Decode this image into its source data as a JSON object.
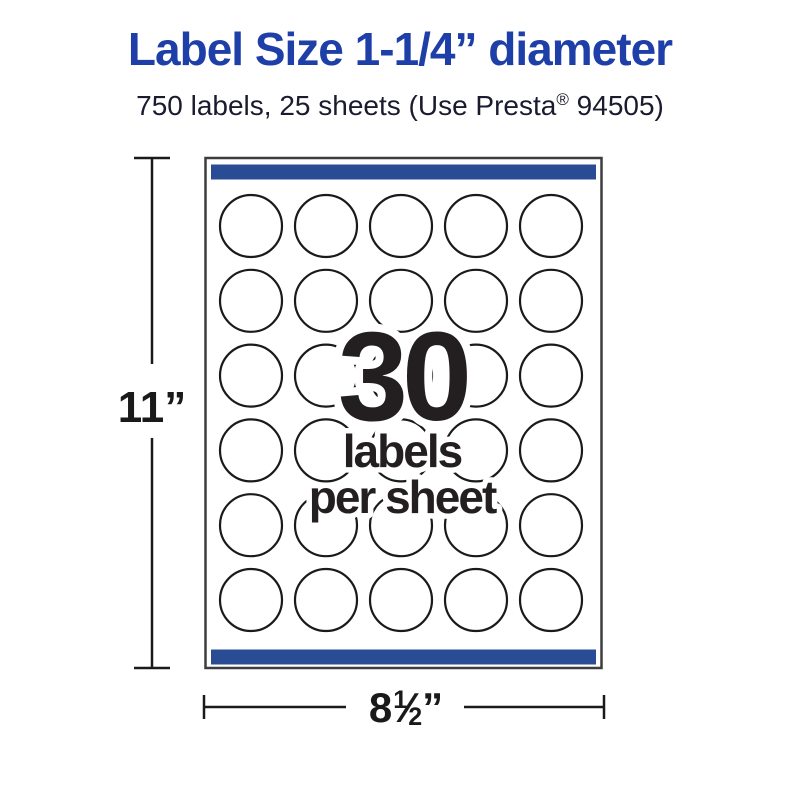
{
  "header": {
    "title": "Label Size 1-1/4” diameter",
    "subtitle_pre": "750 labels, 25 sheets (Use Presta",
    "subtitle_reg_mark": "®",
    "subtitle_post": " 94505)"
  },
  "sheet": {
    "rows": 6,
    "cols": 5,
    "center_label": {
      "count": "30",
      "line1": "labels",
      "line2": "per sheet"
    }
  },
  "dimensions": {
    "height_label": "11”",
    "width_whole": "8",
    "width_numerator": "1",
    "width_slash": "⁄",
    "width_denominator": "2",
    "width_unit": "”"
  },
  "colors": {
    "title_blue": "#1e3fa8",
    "bar_blue": "#294c95",
    "subtitle_ink": "#1b1b2f",
    "text_ink": "#231f20",
    "line_ink": "#1a1a1a"
  }
}
